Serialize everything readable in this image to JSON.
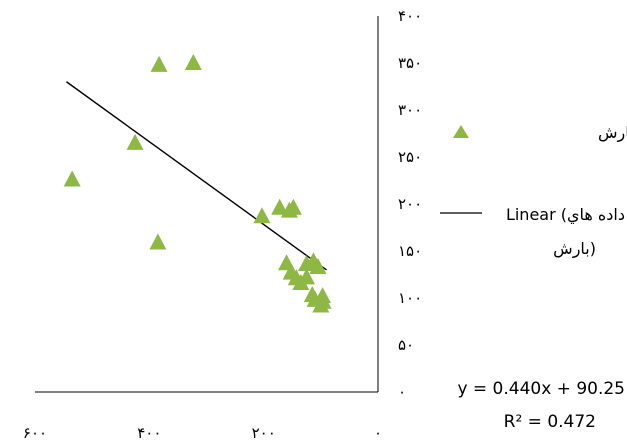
{
  "chart_data": {
    "type": "scatter",
    "x_axis_reversed": true,
    "y_axis_position": "right",
    "xlim": [
      0,
      600
    ],
    "ylim": [
      0,
      400
    ],
    "x_ticks": [
      {
        "value": 0,
        "label": "۰"
      },
      {
        "value": 200,
        "label": "۲۰۰"
      },
      {
        "value": 400,
        "label": "۴۰۰"
      },
      {
        "value": 600,
        "label": "۶۰۰"
      }
    ],
    "y_ticks": [
      {
        "value": 0,
        "label": "۰"
      },
      {
        "value": 50,
        "label": "۵۰"
      },
      {
        "value": 100,
        "label": "۱۰۰"
      },
      {
        "value": 150,
        "label": "۱۵۰"
      },
      {
        "value": 200,
        "label": "۲۰۰"
      },
      {
        "value": 250,
        "label": "۲۵۰"
      },
      {
        "value": 300,
        "label": "۳۰۰"
      },
      {
        "value": 350,
        "label": "۳۵۰"
      },
      {
        "value": 400,
        "label": "۴۰۰"
      }
    ],
    "grid": false,
    "legend_position": "right",
    "series": [
      {
        "name": "داده هاي بارش",
        "color": "#8db844",
        "marker": "triangle",
        "points": [
          {
            "x": 535,
            "y": 226
          },
          {
            "x": 383,
            "y": 348
          },
          {
            "x": 323,
            "y": 350
          },
          {
            "x": 385,
            "y": 159
          },
          {
            "x": 425,
            "y": 265
          },
          {
            "x": 203,
            "y": 187
          },
          {
            "x": 172,
            "y": 196
          },
          {
            "x": 155,
            "y": 193
          },
          {
            "x": 148,
            "y": 196
          },
          {
            "x": 160,
            "y": 137
          },
          {
            "x": 152,
            "y": 127
          },
          {
            "x": 143,
            "y": 121
          },
          {
            "x": 125,
            "y": 136
          },
          {
            "x": 113,
            "y": 139
          },
          {
            "x": 135,
            "y": 116
          },
          {
            "x": 125,
            "y": 122
          },
          {
            "x": 105,
            "y": 133
          },
          {
            "x": 115,
            "y": 103
          },
          {
            "x": 97,
            "y": 102
          },
          {
            "x": 100,
            "y": 92
          },
          {
            "x": 110,
            "y": 98
          },
          {
            "x": 96,
            "y": 96
          }
        ]
      }
    ],
    "trendline": {
      "name": "Linear (داده هاي بارش)",
      "type": "linear",
      "slope": 0.44,
      "intercept": 90.25,
      "x_range": [
        90,
        545
      ],
      "color": "#000000",
      "equation": "y = 0.440x + 90.25",
      "r_squared": "R² = 0.472"
    }
  }
}
